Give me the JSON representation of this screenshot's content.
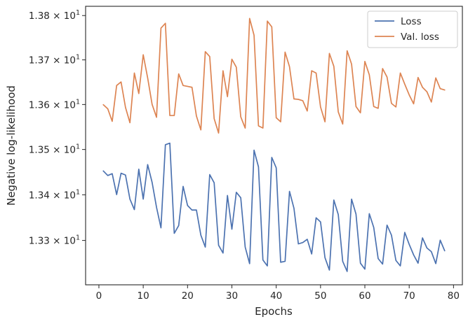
{
  "chart_data": {
    "type": "line",
    "xlabel": "Epochs",
    "ylabel": "Negative log-likelihood",
    "xlim": [
      -3,
      82
    ],
    "ylim": [
      13.2035,
      13.821
    ],
    "yscale": "log",
    "grid": false,
    "legend_position": "top-right",
    "x_ticks": [
      0,
      10,
      20,
      30,
      40,
      50,
      60,
      70,
      80
    ],
    "x_tick_labels": [
      "0",
      "10",
      "20",
      "30",
      "40",
      "50",
      "60",
      "70",
      "80"
    ],
    "y_ticks": [
      13.3,
      13.4,
      13.5,
      13.6,
      13.7,
      13.8
    ],
    "y_tick_mantissas": [
      "1.33",
      "1.34",
      "1.35",
      "1.36",
      "1.37",
      "1.38"
    ],
    "y_tick_base": "10",
    "y_tick_exponent": "1",
    "x": [
      1,
      2,
      3,
      4,
      5,
      6,
      7,
      8,
      9,
      10,
      11,
      12,
      13,
      14,
      15,
      16,
      17,
      18,
      19,
      20,
      21,
      22,
      23,
      24,
      25,
      26,
      27,
      28,
      29,
      30,
      31,
      32,
      33,
      34,
      35,
      36,
      37,
      38,
      39,
      40,
      41,
      42,
      43,
      44,
      45,
      46,
      47,
      48,
      49,
      50,
      51,
      52,
      53,
      54,
      55,
      56,
      57,
      58,
      59,
      60,
      61,
      62,
      63,
      64,
      65,
      66,
      67,
      68,
      69,
      70,
      71,
      72,
      73,
      74,
      75,
      76,
      77,
      78
    ],
    "series": [
      {
        "name": "Loss",
        "color": "#4c72b0",
        "values": [
          13.4525,
          13.4425,
          13.4465,
          13.4005,
          13.4475,
          13.4435,
          13.3905,
          13.3675,
          13.4565,
          13.3905,
          13.4665,
          13.4275,
          13.3725,
          13.3275,
          13.5105,
          13.514,
          13.3155,
          13.3325,
          13.4185,
          13.3765,
          13.3665,
          13.3665,
          13.3115,
          13.2855,
          13.4445,
          13.4265,
          13.2895,
          13.2725,
          13.3985,
          13.3245,
          13.4055,
          13.3935,
          13.2855,
          13.2495,
          13.4985,
          13.4615,
          13.2575,
          13.2445,
          13.4825,
          13.4595,
          13.2525,
          13.2545,
          13.4075,
          13.3705,
          13.2925,
          13.2955,
          13.3025,
          13.2705,
          13.3495,
          13.3405,
          13.2625,
          13.2355,
          13.3885,
          13.3565,
          13.2545,
          13.2325,
          13.3905,
          13.3575,
          13.2505,
          13.2375,
          13.3585,
          13.3285,
          13.2605,
          13.2485,
          13.3335,
          13.3115,
          13.2565,
          13.2445,
          13.3175,
          13.2915,
          13.2685,
          13.2505,
          13.3055,
          13.2835,
          13.2755,
          13.2495,
          13.3005,
          13.2775
        ]
      },
      {
        "name": "Val. loss",
        "color": "#dd8452",
        "values": [
          13.5995,
          13.5905,
          13.5625,
          13.6425,
          13.6505,
          13.5935,
          13.5595,
          13.6705,
          13.6245,
          13.7115,
          13.6595,
          13.6005,
          13.5715,
          13.7715,
          13.7825,
          13.5755,
          13.5755,
          13.6685,
          13.6425,
          13.6405,
          13.6385,
          13.5745,
          13.5435,
          13.7185,
          13.7075,
          13.5685,
          13.5365,
          13.6755,
          13.6175,
          13.7015,
          13.6835,
          13.5725,
          13.5475,
          13.7935,
          13.7555,
          13.5525,
          13.5475,
          13.7875,
          13.7745,
          13.5705,
          13.5615,
          13.7175,
          13.6845,
          13.6125,
          13.6115,
          13.6085,
          13.5855,
          13.6755,
          13.6705,
          13.5945,
          13.5615,
          13.7145,
          13.6855,
          13.5835,
          13.5565,
          13.7205,
          13.6905,
          13.5955,
          13.5815,
          13.6965,
          13.6665,
          13.5955,
          13.5915,
          13.6805,
          13.6615,
          13.6025,
          13.5945,
          13.6705,
          13.6455,
          13.6215,
          13.6015,
          13.6605,
          13.6385,
          13.6285,
          13.6055,
          13.6595,
          13.6355,
          13.6325
        ]
      }
    ]
  }
}
